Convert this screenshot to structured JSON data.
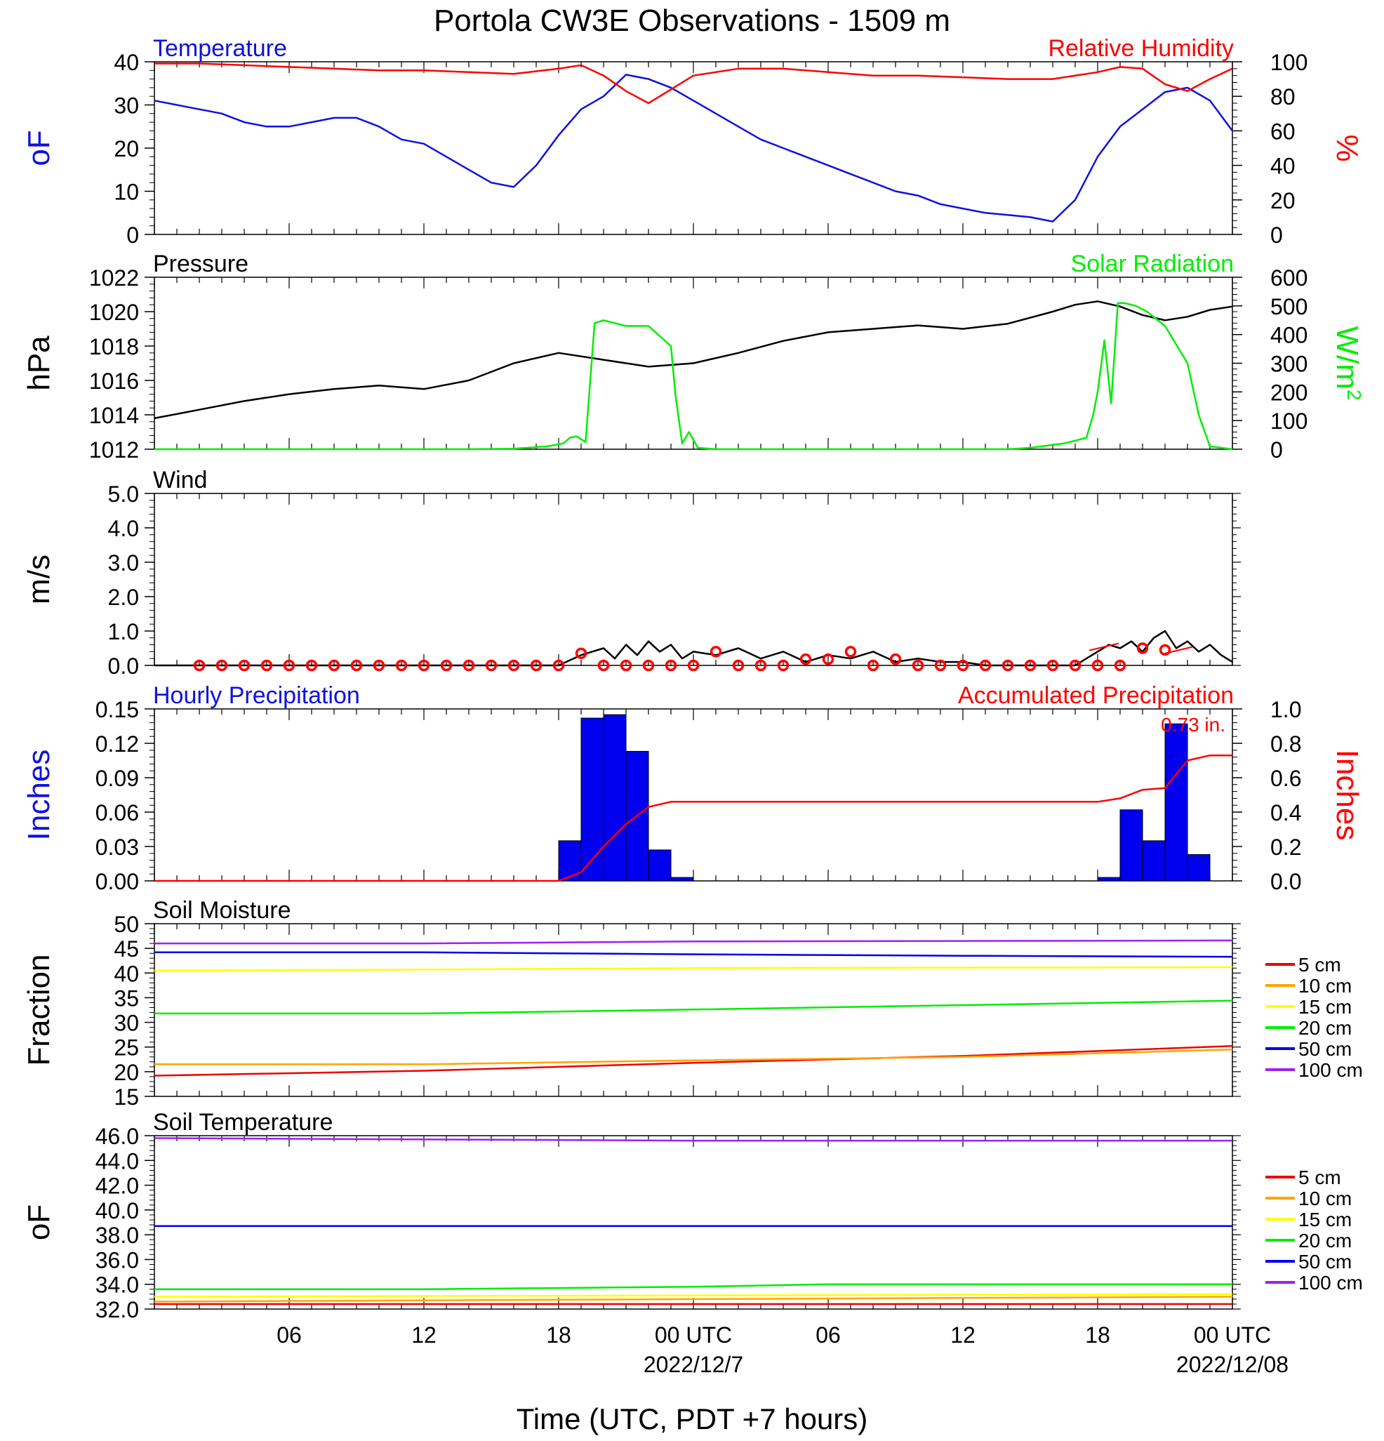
{
  "title": "Portola CW3E Observations - 1509 m",
  "xaxis": {
    "label": "Time (UTC, PDT +7 hours)",
    "range_hours": [
      0,
      48
    ],
    "major_ticks": [
      {
        "hour": 6,
        "label": "06",
        "date": ""
      },
      {
        "hour": 12,
        "label": "12",
        "date": ""
      },
      {
        "hour": 18,
        "label": "18",
        "date": ""
      },
      {
        "hour": 24,
        "label": "00 UTC",
        "date": "2022/12/7"
      },
      {
        "hour": 30,
        "label": "06",
        "date": ""
      },
      {
        "hour": 36,
        "label": "12",
        "date": ""
      },
      {
        "hour": 42,
        "label": "18",
        "date": ""
      },
      {
        "hour": 48,
        "label": "00 UTC",
        "date": "2022/12/08"
      }
    ]
  },
  "chart_data": [
    {
      "type": "line",
      "left_title": "Temperature",
      "right_title": "Relative Humidity",
      "left_unit": "oF",
      "right_unit": "%",
      "ylim_left": [
        0,
        40
      ],
      "ylim_right": [
        0,
        100
      ],
      "yticks_left": [
        0,
        10,
        20,
        30,
        40
      ],
      "yticks_right": [
        0,
        20,
        40,
        60,
        80,
        100
      ],
      "colors": {
        "left": "#1010e0",
        "right": "#ff0000"
      },
      "series": [
        {
          "name": "Temperature",
          "axis": "left",
          "color": "#1010e0",
          "x": [
            0,
            1,
            2,
            3,
            4,
            5,
            6,
            7,
            8,
            9,
            10,
            11,
            12,
            13,
            14,
            15,
            16,
            17,
            18,
            19,
            20,
            21,
            22,
            23,
            24,
            25,
            26,
            27,
            28,
            29,
            30,
            31,
            32,
            33,
            34,
            35,
            36,
            37,
            38,
            39,
            40,
            41,
            42,
            43,
            44,
            45,
            46,
            47,
            48
          ],
          "y": [
            31,
            30,
            29,
            28,
            26,
            25,
            25,
            26,
            27,
            27,
            25,
            22,
            21,
            18,
            15,
            12,
            11,
            16,
            23,
            29,
            32,
            37,
            36,
            34,
            31,
            28,
            25,
            22,
            20,
            18,
            16,
            14,
            12,
            10,
            9,
            7,
            6,
            5,
            4.5,
            4,
            3,
            8,
            18,
            25,
            29,
            33,
            34,
            31,
            24
          ]
        },
        {
          "name": "Relative Humidity",
          "axis": "right",
          "color": "#ff0000",
          "x": [
            0,
            2,
            4,
            6,
            8,
            10,
            12,
            14,
            16,
            18,
            19,
            20,
            21,
            22,
            23,
            24,
            26,
            28,
            30,
            32,
            34,
            36,
            38,
            40,
            42,
            43,
            44,
            45,
            46,
            47,
            48
          ],
          "y": [
            99,
            99,
            98,
            97,
            96,
            95,
            95,
            94,
            93,
            96,
            98,
            92,
            83,
            76,
            84,
            92,
            96,
            96,
            94,
            92,
            92,
            91,
            90,
            90,
            94,
            97,
            96,
            87,
            83,
            90,
            96
          ]
        }
      ]
    },
    {
      "type": "line",
      "left_title": "Pressure",
      "right_title": "Solar Radiation",
      "left_unit": "hPa",
      "right_unit": "W/m",
      "right_unit_sup": "2",
      "ylim_left": [
        1012,
        1022
      ],
      "ylim_right": [
        0,
        600
      ],
      "yticks_left": [
        1012,
        1014,
        1016,
        1018,
        1020,
        1022
      ],
      "yticks_right": [
        0,
        100,
        200,
        300,
        400,
        500,
        600
      ],
      "colors": {
        "left": "#000000",
        "right": "#00ee00"
      },
      "series": [
        {
          "name": "Pressure",
          "axis": "left",
          "color": "#000000",
          "x": [
            0,
            2,
            4,
            6,
            8,
            10,
            12,
            14,
            16,
            18,
            20,
            22,
            24,
            26,
            28,
            30,
            32,
            34,
            36,
            38,
            40,
            41,
            42,
            43,
            44,
            45,
            46,
            47,
            48
          ],
          "y": [
            1013.8,
            1014.3,
            1014.8,
            1015.2,
            1015.5,
            1015.7,
            1015.5,
            1016.0,
            1017.0,
            1017.6,
            1017.2,
            1016.8,
            1017.0,
            1017.6,
            1018.3,
            1018.8,
            1019.0,
            1019.2,
            1019.0,
            1019.3,
            1020.0,
            1020.4,
            1020.6,
            1020.3,
            1019.8,
            1019.5,
            1019.7,
            1020.1,
            1020.3
          ]
        },
        {
          "name": "Solar Radiation",
          "axis": "right",
          "color": "#00ee00",
          "x": [
            0,
            14,
            16,
            17.5,
            18.2,
            18.5,
            18.8,
            19.2,
            19.6,
            20.0,
            20.5,
            21.0,
            22.0,
            23.0,
            23.2,
            23.5,
            23.8,
            24.2,
            25,
            38,
            39,
            40.5,
            41.5,
            41.8,
            42.0,
            42.3,
            42.6,
            42.9,
            43.2,
            43.7,
            44.2,
            45.0,
            46.0,
            46.5,
            47.0,
            48
          ],
          "y": [
            0,
            0,
            2,
            10,
            20,
            40,
            45,
            25,
            440,
            450,
            440,
            430,
            430,
            360,
            190,
            20,
            60,
            5,
            0,
            0,
            5,
            20,
            40,
            120,
            200,
            380,
            160,
            510,
            510,
            500,
            480,
            430,
            300,
            120,
            10,
            0
          ]
        }
      ]
    },
    {
      "type": "line",
      "left_title": "Wind",
      "left_unit": "m/s",
      "ylim_left": [
        0,
        5
      ],
      "yticks_left": [
        "0.0",
        "1.0",
        "2.0",
        "3.0",
        "4.0",
        "5.0"
      ],
      "series": [
        {
          "name": "Wind",
          "axis": "left",
          "color": "#000000",
          "x": [
            0,
            18,
            19,
            20,
            20.5,
            21,
            21.5,
            22,
            22.5,
            23,
            23.5,
            24,
            25,
            26,
            27,
            28,
            29,
            30,
            31,
            32,
            33,
            34,
            35,
            36,
            37,
            38,
            39,
            40,
            41,
            41.5,
            42,
            42.5,
            43,
            43.5,
            44,
            44.5,
            45,
            45.5,
            46,
            46.5,
            47,
            47.5,
            48
          ],
          "y": [
            0,
            0,
            0.3,
            0.5,
            0.2,
            0.6,
            0.3,
            0.7,
            0.4,
            0.6,
            0.2,
            0.4,
            0.3,
            0.5,
            0.2,
            0.4,
            0.1,
            0.3,
            0.2,
            0.4,
            0.1,
            0.2,
            0.1,
            0.1,
            0,
            0,
            0,
            0,
            0,
            0.2,
            0.4,
            0.6,
            0.5,
            0.7,
            0.4,
            0.8,
            1.0,
            0.5,
            0.7,
            0.4,
            0.6,
            0.3,
            0.1
          ]
        },
        {
          "name": "Hourly wind",
          "axis": "left",
          "color": "#ff0000",
          "marker": "circle",
          "x": [
            2,
            3,
            4,
            5,
            6,
            7,
            8,
            9,
            10,
            11,
            12,
            13,
            14,
            15,
            16,
            17,
            18,
            19,
            20,
            21,
            22,
            23,
            24,
            25,
            26,
            27,
            28,
            29,
            30,
            31,
            32,
            33,
            34,
            35,
            36,
            37,
            38,
            39,
            40,
            41,
            42,
            43,
            44,
            45
          ],
          "y": [
            0,
            0,
            0,
            0,
            0,
            0,
            0,
            0,
            0,
            0,
            0,
            0,
            0,
            0,
            0,
            0,
            0,
            0.35,
            0,
            0,
            0,
            0,
            0,
            0.4,
            0,
            0,
            0,
            0.18,
            0.18,
            0.4,
            0,
            0.18,
            0,
            0,
            0,
            0,
            0,
            0,
            0,
            0,
            0,
            0,
            0.5,
            0.45
          ]
        }
      ],
      "barbs": [
        {
          "hour": 42.5,
          "value": 0.6
        },
        {
          "hour": 45.8,
          "value": 0.5
        }
      ]
    },
    {
      "type": "bar",
      "left_title": "Hourly Precipitation",
      "right_title": "Accumulated Precipitation",
      "left_unit": "Inches",
      "right_unit": "Inches",
      "total_label": "0.73 in.",
      "ylim_left": [
        0,
        0.15
      ],
      "ylim_right": [
        0,
        1.0
      ],
      "yticks_left": [
        "0.00",
        "0.03",
        "0.06",
        "0.09",
        "0.12",
        "0.15"
      ],
      "yticks_right": [
        "0.0",
        "0.2",
        "0.4",
        "0.6",
        "0.8",
        "1.0"
      ],
      "colors": {
        "left": "#1010e0",
        "right": "#ff0000"
      },
      "bars": {
        "name": "Hourly Precipitation",
        "color": "#0000ee",
        "start_hours": [
          18,
          19,
          20,
          21,
          22,
          23,
          42,
          43,
          44,
          45,
          46
        ],
        "values": [
          0.035,
          0.142,
          0.145,
          0.113,
          0.027,
          0.003,
          0.003,
          0.062,
          0.035,
          0.137,
          0.023
        ]
      },
      "series": [
        {
          "name": "Accumulated Precipitation",
          "axis": "right",
          "color": "#ff0000",
          "x": [
            0,
            18,
            19,
            20,
            21,
            22,
            23,
            24,
            42,
            43,
            44,
            45,
            46,
            47,
            48
          ],
          "y": [
            0,
            0,
            0.05,
            0.2,
            0.33,
            0.43,
            0.46,
            0.46,
            0.46,
            0.48,
            0.53,
            0.54,
            0.7,
            0.73,
            0.73
          ]
        }
      ]
    },
    {
      "type": "line",
      "left_title": "Soil Moisture",
      "left_unit": "Fraction",
      "ylim_left": [
        15,
        50
      ],
      "yticks_left": [
        15,
        20,
        25,
        30,
        35,
        40,
        45,
        50
      ],
      "legend": {
        "position": "right",
        "entries": [
          "5 cm",
          "10 cm",
          "15 cm",
          "20 cm",
          "50 cm",
          "100 cm"
        ],
        "colors": [
          "#ee0000",
          "#ffa500",
          "#ffff00",
          "#00ee00",
          "#0000ee",
          "#a020f0"
        ]
      },
      "series": [
        {
          "name": "5 cm",
          "axis": "left",
          "color": "#ee0000",
          "x": [
            0,
            12,
            24,
            36,
            48
          ],
          "y": [
            19.2,
            20.2,
            21.8,
            23.2,
            25.2
          ]
        },
        {
          "name": "10 cm",
          "axis": "left",
          "color": "#ffa500",
          "x": [
            0,
            12,
            24,
            36,
            48
          ],
          "y": [
            21.5,
            21.5,
            22.3,
            23.0,
            24.5
          ]
        },
        {
          "name": "15 cm",
          "axis": "left",
          "color": "#ffff00",
          "x": [
            0,
            12,
            24,
            36,
            48
          ],
          "y": [
            40.5,
            40.7,
            41.0,
            41.1,
            41.2
          ]
        },
        {
          "name": "20 cm",
          "axis": "left",
          "color": "#00ee00",
          "x": [
            0,
            12,
            24,
            36,
            48
          ],
          "y": [
            31.8,
            31.8,
            32.6,
            33.5,
            34.4
          ]
        },
        {
          "name": "50 cm",
          "axis": "left",
          "color": "#0000ee",
          "x": [
            0,
            12,
            24,
            36,
            48
          ],
          "y": [
            44.2,
            44.2,
            43.8,
            43.5,
            43.3
          ]
        },
        {
          "name": "100 cm",
          "axis": "left",
          "color": "#a020f0",
          "x": [
            0,
            12,
            24,
            36,
            48
          ],
          "y": [
            46.0,
            46.0,
            46.4,
            46.5,
            46.6
          ]
        }
      ]
    },
    {
      "type": "line",
      "left_title": "Soil Temperature",
      "left_unit": "oF",
      "ylim_left": [
        32,
        46
      ],
      "yticks_left": [
        "32.0",
        "34.0",
        "36.0",
        "38.0",
        "40.0",
        "42.0",
        "44.0",
        "46.0"
      ],
      "legend": {
        "position": "right",
        "entries": [
          "5 cm",
          "10 cm",
          "15 cm",
          "20 cm",
          "50 cm",
          "100 cm"
        ],
        "colors": [
          "#ee0000",
          "#ffa500",
          "#ffff00",
          "#00ee00",
          "#0000ee",
          "#a020f0"
        ]
      },
      "series": [
        {
          "name": "5 cm",
          "axis": "left",
          "color": "#ee0000",
          "x": [
            0,
            48
          ],
          "y": [
            32.4,
            32.4
          ]
        },
        {
          "name": "10 cm",
          "axis": "left",
          "color": "#ffa500",
          "x": [
            0,
            24,
            48
          ],
          "y": [
            32.6,
            32.8,
            33.0
          ]
        },
        {
          "name": "15 cm",
          "axis": "left",
          "color": "#ffff00",
          "x": [
            0,
            24,
            48
          ],
          "y": [
            33.0,
            33.1,
            33.2
          ]
        },
        {
          "name": "20 cm",
          "axis": "left",
          "color": "#00ee00",
          "x": [
            0,
            12,
            24,
            30,
            48
          ],
          "y": [
            33.6,
            33.6,
            33.8,
            34.0,
            34.0
          ]
        },
        {
          "name": "50 cm",
          "axis": "left",
          "color": "#0000ee",
          "x": [
            0,
            48
          ],
          "y": [
            38.7,
            38.7
          ]
        },
        {
          "name": "100 cm",
          "axis": "left",
          "color": "#a020f0",
          "x": [
            0,
            24,
            48
          ],
          "y": [
            45.8,
            45.6,
            45.6
          ]
        }
      ]
    }
  ]
}
